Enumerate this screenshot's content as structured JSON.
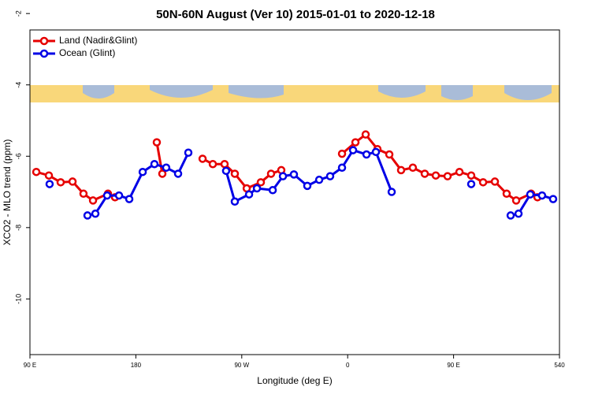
{
  "chart_data": {
    "type": "line",
    "title": "50N-60N August (Ver 10)   2015-01-01 to 2020-12-18",
    "x_label": "Longitude (deg E)",
    "y_label": "XCO2 - MLO trend (ppm)",
    "xlim": [
      90,
      540
    ],
    "xticks": [
      {
        "value": 90,
        "label": "90 E"
      },
      180,
      {
        "value": 270,
        "label": "90 W"
      },
      {
        "value": 360,
        "label": "0"
      },
      {
        "value": 450,
        "label": "90 E"
      },
      540
    ],
    "ylim": [
      -11.56,
      -2.46
    ],
    "yticks": [
      -2,
      -4,
      -6,
      -8,
      -10
    ],
    "legend": "top-left",
    "series": [
      {
        "name": "Land (Nadir&Glint)",
        "color": "#e60000",
        "x": [
          95.4,
          106.1,
          116.1,
          126.2,
          135.5,
          143.6,
          156.3,
          162.3,
          null,
          197.8,
          202.5,
          null,
          236.7,
          245.4,
          255.4,
          264.1,
          274.2,
          286.2,
          294.9,
          303.6,
          null,
          355.2,
          366.6,
          375.3,
          385.3,
          395.4,
          405.4,
          415.4,
          425.5,
          434.9,
          444.9,
          455.0,
          465.0,
          475.1,
          485.1,
          495.1,
          503.2,
          515.9,
          521.3
        ],
        "values": [
          -6.44,
          -6.54,
          -6.73,
          -6.71,
          -7.05,
          -7.24,
          -7.05,
          -7.15,
          null,
          -5.61,
          -6.49,
          null,
          -6.07,
          -6.22,
          -6.22,
          -6.49,
          -6.9,
          -6.73,
          -6.49,
          -6.39,
          null,
          -5.93,
          -5.61,
          -5.39,
          -5.8,
          -5.95,
          -6.39,
          -6.32,
          -6.49,
          -6.54,
          -6.56,
          -6.44,
          -6.54,
          -6.73,
          -6.71,
          -7.05,
          -7.24,
          -7.05,
          -7.15
        ]
      },
      {
        "name": "Ocean (Glint)",
        "color": "#0000e6",
        "x": [
          106.7,
          null,
          138.9,
          145.6,
          155.6,
          165.7,
          174.4,
          185.8,
          195.8,
          205.8,
          215.9,
          224.6,
          null,
          256.7,
          264.1,
          276.2,
          282.9,
          296.3,
          305.0,
          314.3,
          325.7,
          335.8,
          345.1,
          355.2,
          364.6,
          376.0,
          384.0,
          397.4,
          null,
          465.0,
          null,
          498.5,
          505.2,
          515.2,
          525.2,
          534.6
        ],
        "values": [
          -6.78,
          null,
          -7.66,
          -7.61,
          -7.1,
          -7.1,
          -7.2,
          -6.44,
          -6.22,
          -6.32,
          -6.49,
          -5.9,
          null,
          -6.41,
          -7.27,
          -7.07,
          -6.9,
          -6.95,
          -6.56,
          -6.51,
          -6.83,
          -6.66,
          -6.56,
          -6.32,
          -5.83,
          -5.95,
          -5.88,
          -7.0,
          null,
          -6.78,
          null,
          -7.66,
          -7.61,
          -7.07,
          -7.1,
          -7.2
        ]
      }
    ]
  }
}
